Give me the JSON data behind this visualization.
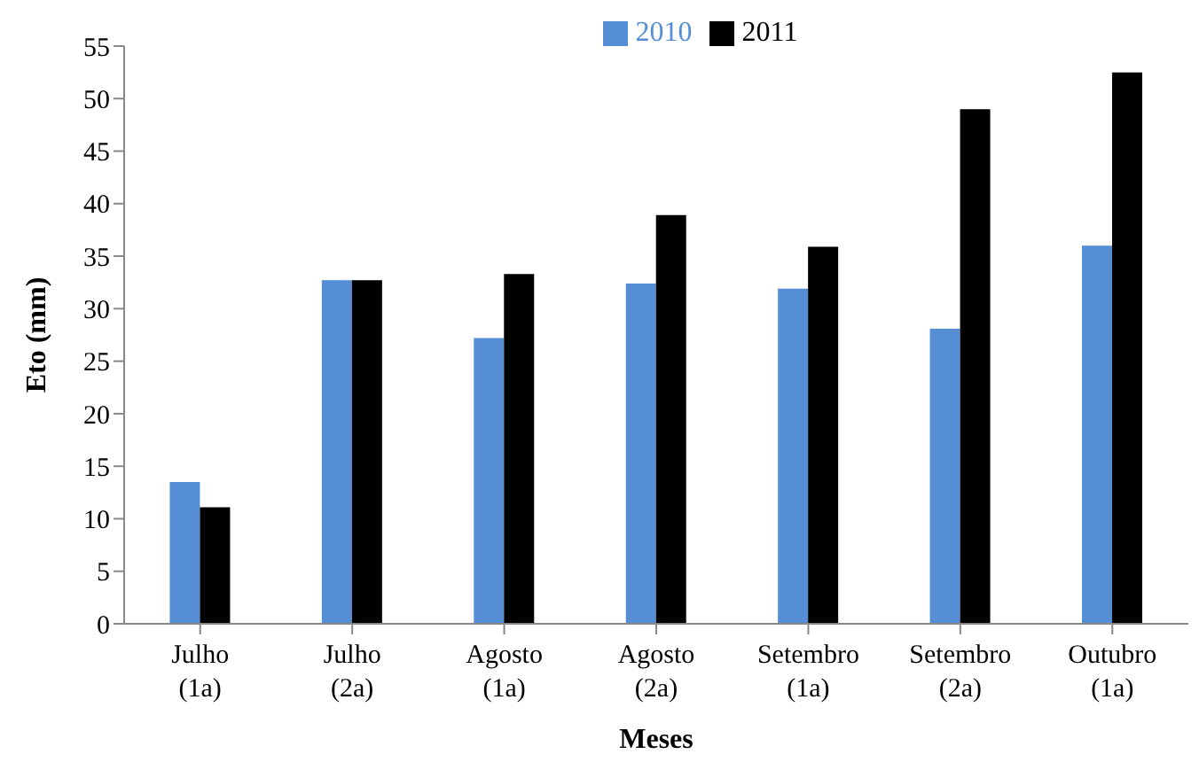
{
  "chart_data": {
    "type": "bar",
    "xlabel": "Meses",
    "ylabel": "Eto (mm)",
    "categories": [
      "Julho (1a)",
      "Julho (2a)",
      "Agosto (1a)",
      "Agosto (2a)",
      "Setembro (1a)",
      "Setembro (2a)",
      "Outubro (1a)"
    ],
    "series": [
      {
        "name": "2010",
        "color": "#558ed5",
        "values": [
          13.5,
          32.7,
          27.2,
          32.4,
          31.9,
          28.1,
          36
        ]
      },
      {
        "name": "2011",
        "color": "#000000",
        "values": [
          11.1,
          32.7,
          33.3,
          38.9,
          35.9,
          49,
          52.5
        ]
      }
    ],
    "ylim": [
      0,
      55
    ],
    "yticks": [
      0,
      5,
      10,
      15,
      20,
      25,
      30,
      35,
      40,
      45,
      50,
      55
    ],
    "legend": "top",
    "grid": false
  }
}
